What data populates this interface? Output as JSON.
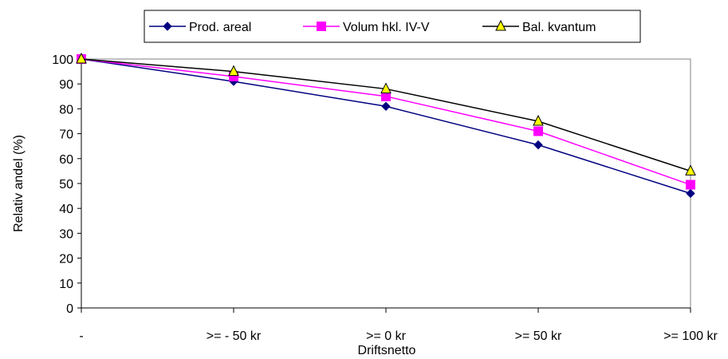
{
  "chart_data": {
    "type": "line",
    "xlabel": "Driftsnetto",
    "ylabel": "Relativ andel (%)",
    "categories": [
      "-",
      ">= - 50 kr",
      ">= 0 kr",
      ">= 50 kr",
      ">= 100 kr"
    ],
    "ylim": [
      0,
      100
    ],
    "yticks": [
      0,
      10,
      20,
      30,
      40,
      50,
      60,
      70,
      80,
      90,
      100
    ],
    "grid": false,
    "legend": "top",
    "series": [
      {
        "name": "Prod. areal",
        "values": [
          100,
          91,
          81,
          65.5,
          46
        ],
        "color": "#000080",
        "marker": "diamond"
      },
      {
        "name": "Volum hkl. IV-V",
        "values": [
          100,
          93,
          85,
          71,
          49.5
        ],
        "color": "#ff00ff",
        "marker": "square"
      },
      {
        "name": "Bal. kvantum",
        "values": [
          100,
          95,
          88,
          75,
          55
        ],
        "color": "#000000",
        "marker": "triangle",
        "fill": "#ffff00"
      }
    ]
  }
}
